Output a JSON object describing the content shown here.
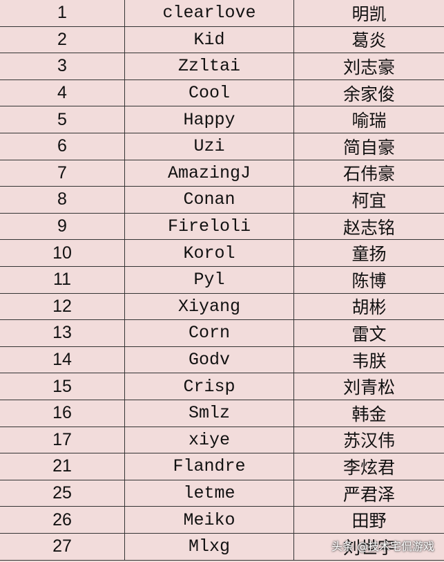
{
  "table": {
    "rows": [
      [
        "1",
        "clearlove",
        "明凯"
      ],
      [
        "2",
        "Kid",
        "葛炎"
      ],
      [
        "3",
        "Zzltai",
        "刘志豪"
      ],
      [
        "4",
        "Cool",
        "余家俊"
      ],
      [
        "5",
        "Happy",
        "喻瑞"
      ],
      [
        "6",
        "Uzi",
        "简自豪"
      ],
      [
        "7",
        "AmazingJ",
        "石伟豪"
      ],
      [
        "8",
        "Conan",
        "柯宜"
      ],
      [
        "9",
        "Fireloli",
        "赵志铭"
      ],
      [
        "10",
        "Korol",
        "童扬"
      ],
      [
        "11",
        "Pyl",
        "陈博"
      ],
      [
        "12",
        "Xiyang",
        "胡彬"
      ],
      [
        "13",
        "Corn",
        "雷文"
      ],
      [
        "14",
        "Godv",
        "韦朕"
      ],
      [
        "15",
        "Crisp",
        "刘青松"
      ],
      [
        "16",
        "Smlz",
        "韩金"
      ],
      [
        "17",
        "xiye",
        "苏汉伟"
      ],
      [
        "21",
        "Flandre",
        "李炫君"
      ],
      [
        "25",
        "letme",
        "严君泽"
      ],
      [
        "26",
        "Meiko",
        "田野"
      ],
      [
        "27",
        "Mlxg",
        "刘世宇"
      ]
    ]
  },
  "watermark": "头条 @技术宅侃游戏"
}
